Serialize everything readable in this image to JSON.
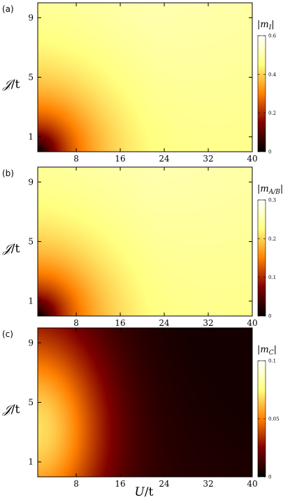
{
  "chart_data": [
    {
      "type": "heatmap",
      "panel_label": "(a)",
      "xlabel": "",
      "ylabel": "𝒥/t",
      "x_range": [
        1,
        40
      ],
      "y_range": [
        0,
        10
      ],
      "x_ticks": [
        "8",
        "16",
        "24",
        "32",
        "40"
      ],
      "y_ticks": [
        "1",
        "5",
        "9"
      ],
      "colorbar_title": "|m_I|",
      "colorbar_title_display": "|m",
      "colorbar_title_sub": "I",
      "colorbar_range": [
        0,
        0.6
      ],
      "colorbar_ticks": [
        "0",
        "0.2",
        "0.4",
        "0.6"
      ],
      "colorbar_tick_values": [
        0,
        0.2,
        0.4,
        0.6
      ],
      "colormap": "afmhot",
      "field": "corner_low",
      "grid": false
    },
    {
      "type": "heatmap",
      "panel_label": "(b)",
      "xlabel": "",
      "ylabel": "𝒥/t",
      "x_range": [
        1,
        40
      ],
      "y_range": [
        0,
        10
      ],
      "x_ticks": [
        "8",
        "16",
        "24",
        "32",
        "40"
      ],
      "y_ticks": [
        "1",
        "5",
        "9"
      ],
      "colorbar_title": "|m_A/B|",
      "colorbar_title_display": "|m",
      "colorbar_title_sub": "A/B",
      "colorbar_range": [
        0,
        0.3
      ],
      "colorbar_ticks": [
        "0",
        "0.1",
        "0.2",
        "0.3"
      ],
      "colorbar_tick_values": [
        0,
        0.1,
        0.2,
        0.3
      ],
      "colormap": "afmhot",
      "field": "corner_low",
      "grid": false
    },
    {
      "type": "heatmap",
      "panel_label": "(c)",
      "xlabel": "U/t",
      "ylabel": "𝒥/t",
      "x_range": [
        1,
        40
      ],
      "y_range": [
        0,
        10
      ],
      "x_ticks": [
        "8",
        "16",
        "24",
        "32",
        "40"
      ],
      "y_ticks": [
        "1",
        "5",
        "9"
      ],
      "colorbar_title": "|m_C|",
      "colorbar_title_display": "|m",
      "colorbar_title_sub": "C",
      "colorbar_range": [
        0,
        0.1
      ],
      "colorbar_ticks": [
        "0",
        "0.05",
        "0.1"
      ],
      "colorbar_tick_values": [
        0,
        0.05,
        0.1
      ],
      "colormap": "afmhot",
      "field": "left_high",
      "grid": false
    }
  ],
  "axis_labels": {
    "y": "𝒥/t",
    "x": "U/t",
    "x_display": "U",
    "y_display": "𝒥",
    "divisor": "/t"
  }
}
